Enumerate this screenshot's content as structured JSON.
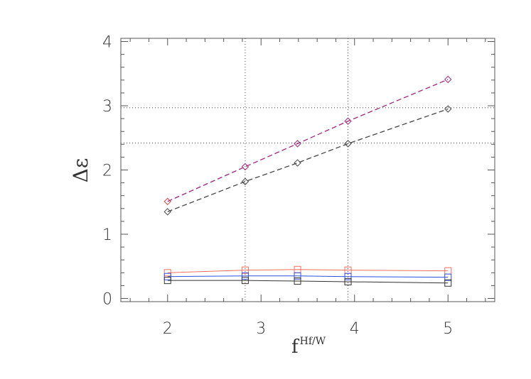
{
  "chart_data": {
    "type": "line",
    "xlabel_base": "f",
    "xlabel_sup": "Hf/W",
    "ylabel": "Δε",
    "xlim": [
      1.5,
      5.5
    ],
    "ylim": [
      -0.05,
      4.05
    ],
    "x_ticks": [
      "2",
      "3",
      "4",
      "5"
    ],
    "y_ticks": [
      "0",
      "1",
      "2",
      "3",
      "4"
    ],
    "grid": {
      "vertical_x": [
        2.83,
        3.93
      ],
      "horizontal_y": [
        2.97,
        2.42
      ]
    },
    "series": [
      {
        "color": "#a0287a",
        "style": "dashed",
        "marker": "diamond",
        "marker_color": "#a0287a",
        "first_marker_color": "#d0404a",
        "x": [
          2.0,
          2.83,
          3.39,
          3.93,
          5.0
        ],
        "y": [
          1.51,
          2.05,
          2.41,
          2.76,
          3.41
        ]
      },
      {
        "color": "#444444",
        "style": "dashed",
        "marker": "diamond",
        "marker_color": "#444444",
        "x": [
          2.0,
          2.83,
          3.39,
          3.93,
          5.0
        ],
        "y": [
          1.35,
          1.82,
          2.11,
          2.41,
          2.95
        ]
      },
      {
        "color": "#f07060",
        "style": "solid",
        "marker": "square",
        "marker_color": "#f07060",
        "x": [
          2.0,
          2.83,
          3.39,
          3.93,
          5.0
        ],
        "y": [
          0.4,
          0.44,
          0.45,
          0.44,
          0.43
        ]
      },
      {
        "color": "#3050e0",
        "style": "solid",
        "marker": "square",
        "marker_color": "#3050e0",
        "x": [
          2.0,
          2.83,
          3.39,
          3.93,
          5.0
        ],
        "y": [
          0.34,
          0.35,
          0.35,
          0.34,
          0.33
        ]
      },
      {
        "color": "#333333",
        "style": "solid",
        "marker": "square",
        "marker_color": "#333333",
        "x": [
          2.0,
          2.83,
          3.39,
          3.93,
          5.0
        ],
        "y": [
          0.28,
          0.28,
          0.27,
          0.26,
          0.24
        ]
      }
    ]
  }
}
